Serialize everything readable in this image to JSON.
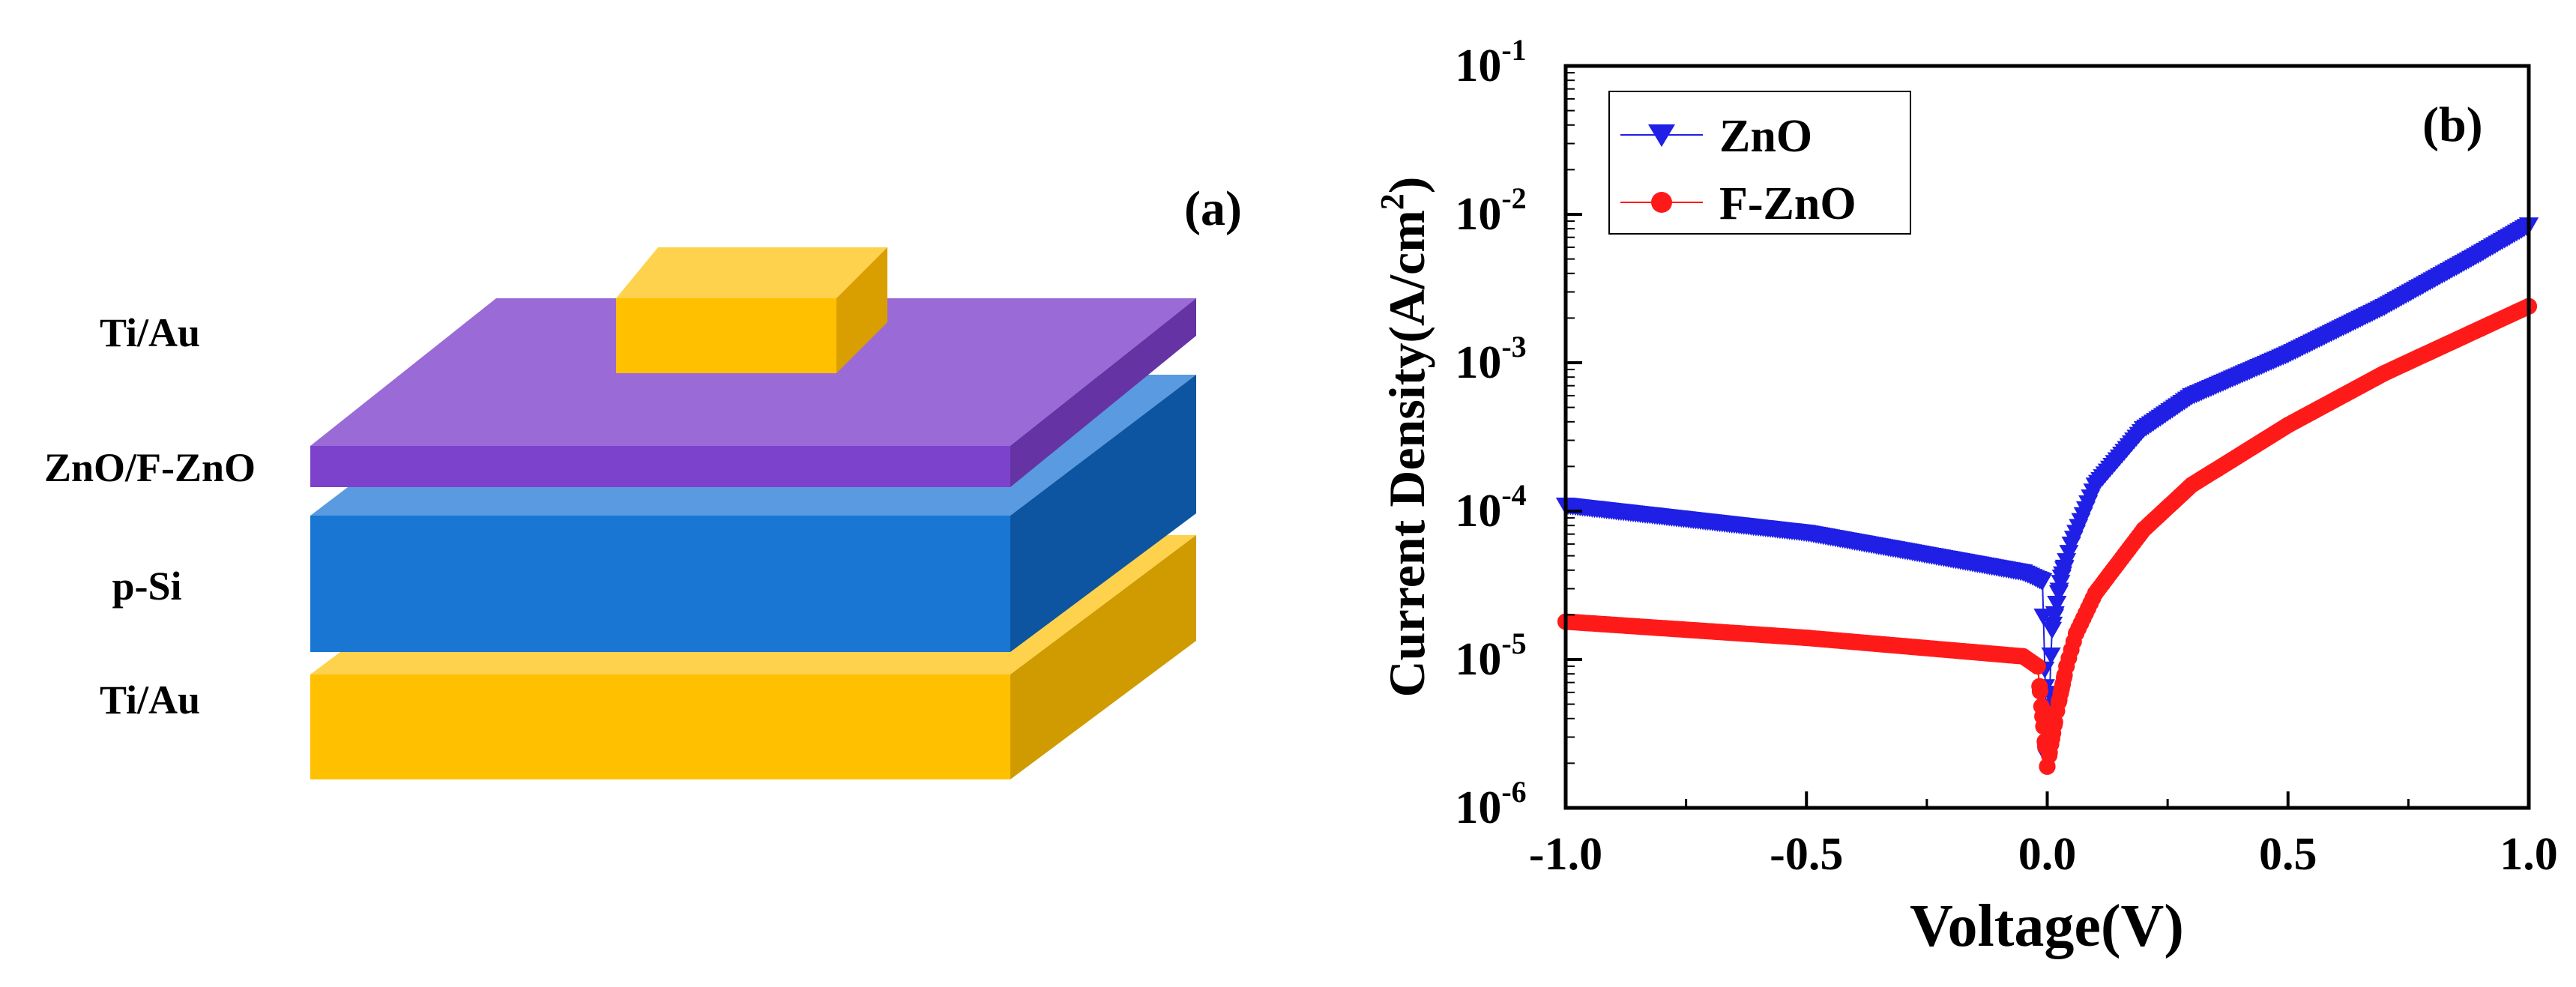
{
  "panel_a": {
    "label": "(a)",
    "layers": [
      {
        "name": "top-electrode",
        "label": "Ti/Au",
        "color": "#ffbf00"
      },
      {
        "name": "zno-layer",
        "label": "ZnO/F-ZnO",
        "color": "#8a5cd6"
      },
      {
        "name": "p-si-layer",
        "label": "p-Si",
        "color": "#1976d2"
      },
      {
        "name": "bottom-electrode",
        "label": "Ti/Au",
        "color": "#ffbf00"
      }
    ]
  },
  "chart_data": {
    "type": "scatter",
    "panel_label": "(b)",
    "xlabel": "Voltage(V)",
    "ylabel_main": "Current Density(A/cm",
    "ylabel_sup": "2",
    "ylabel_close": ")",
    "xlim": [
      -1.0,
      1.0
    ],
    "ylim": [
      1e-06,
      0.1
    ],
    "yscale": "log",
    "x_ticks": [
      -1.0,
      -0.5,
      0.0,
      0.5,
      1.0
    ],
    "x_tick_labels": [
      "-1.0",
      "-0.5",
      "0.0",
      "0.5",
      "1.0"
    ],
    "y_ticks": [
      1e-06,
      1e-05,
      0.0001,
      0.001,
      0.01,
      0.1
    ],
    "y_tick_base": "10",
    "y_tick_exponents": [
      "-6",
      "-5",
      "-4",
      "-3",
      "-2",
      "-1"
    ],
    "legend_position": "top-left",
    "series": [
      {
        "name": "ZnO",
        "color": "#1f1fe6",
        "marker": "triangle-down",
        "anchors": [
          [
            -1.0,
            0.00011
          ],
          [
            -0.5,
            7.2e-05
          ],
          [
            -0.05,
            3.9e-05
          ],
          [
            -0.01,
            3.4e-05
          ],
          [
            0.0,
            2.2e-06
          ],
          [
            0.01,
            1.6e-05
          ],
          [
            0.03,
            3.6e-05
          ],
          [
            0.05,
            6e-05
          ],
          [
            0.1,
            0.00015
          ],
          [
            0.2,
            0.00036
          ],
          [
            0.3,
            0.0006
          ],
          [
            0.5,
            0.00115
          ],
          [
            0.7,
            0.0024
          ],
          [
            0.9,
            0.0055
          ],
          [
            1.0,
            0.0085
          ]
        ]
      },
      {
        "name": "F-ZnO",
        "color": "#ff1a1a",
        "marker": "circle",
        "anchors": [
          [
            -1.0,
            1.8e-05
          ],
          [
            -0.5,
            1.4e-05
          ],
          [
            -0.05,
            1.05e-05
          ],
          [
            -0.02,
            9e-06
          ],
          [
            0.0,
            1.9e-06
          ],
          [
            0.02,
            4.5e-06
          ],
          [
            0.04,
            9e-06
          ],
          [
            0.06,
            1.5e-05
          ],
          [
            0.1,
            2.8e-05
          ],
          [
            0.2,
            7.5e-05
          ],
          [
            0.3,
            0.00015
          ],
          [
            0.5,
            0.00038
          ],
          [
            0.7,
            0.00085
          ],
          [
            0.9,
            0.0017
          ],
          [
            1.0,
            0.0024
          ]
        ]
      }
    ]
  }
}
